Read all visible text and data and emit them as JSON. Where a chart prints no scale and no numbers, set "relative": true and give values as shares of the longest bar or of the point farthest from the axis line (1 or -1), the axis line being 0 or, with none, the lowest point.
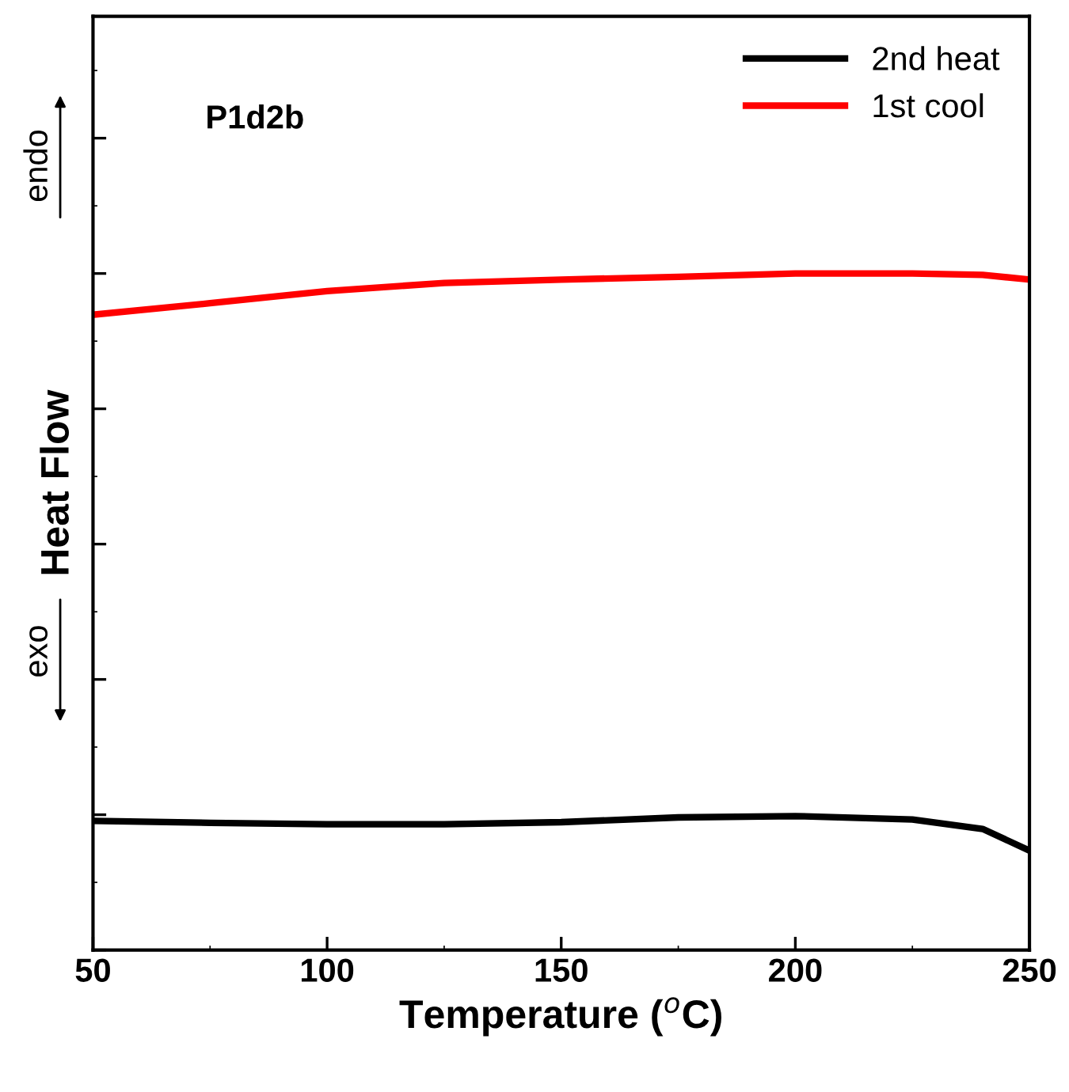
{
  "chart_data": {
    "type": "line",
    "xlabel": "Temperature ($^{o}$C)",
    "ylabel": "Heat Flow",
    "relative": true,
    "xlim": [
      50,
      250
    ],
    "xticks": [
      50,
      100,
      150,
      200,
      250
    ],
    "tick_labels": "x",
    "legend": "top right",
    "grid": false,
    "marker": "none",
    "line_style": "solid",
    "annotations": [
      "P1d2b",
      "endo",
      "exo"
    ],
    "series": [
      {
        "name": "2nd heat",
        "color": "#000000",
        "x": [
          50,
          75,
          100,
          125,
          150,
          175,
          200,
          225,
          240,
          250
        ],
        "values": [
          0.191,
          0.188,
          0.186,
          0.186,
          0.189,
          0.196,
          0.198,
          0.193,
          0.179,
          0.147
        ]
      },
      {
        "name": "1st cool",
        "color": "#ff0000",
        "x": [
          50,
          75,
          100,
          125,
          150,
          175,
          200,
          225,
          240,
          250
        ],
        "values": [
          0.939,
          0.956,
          0.974,
          0.986,
          0.991,
          0.995,
          1,
          1,
          0.998,
          0.991
        ]
      }
    ]
  }
}
